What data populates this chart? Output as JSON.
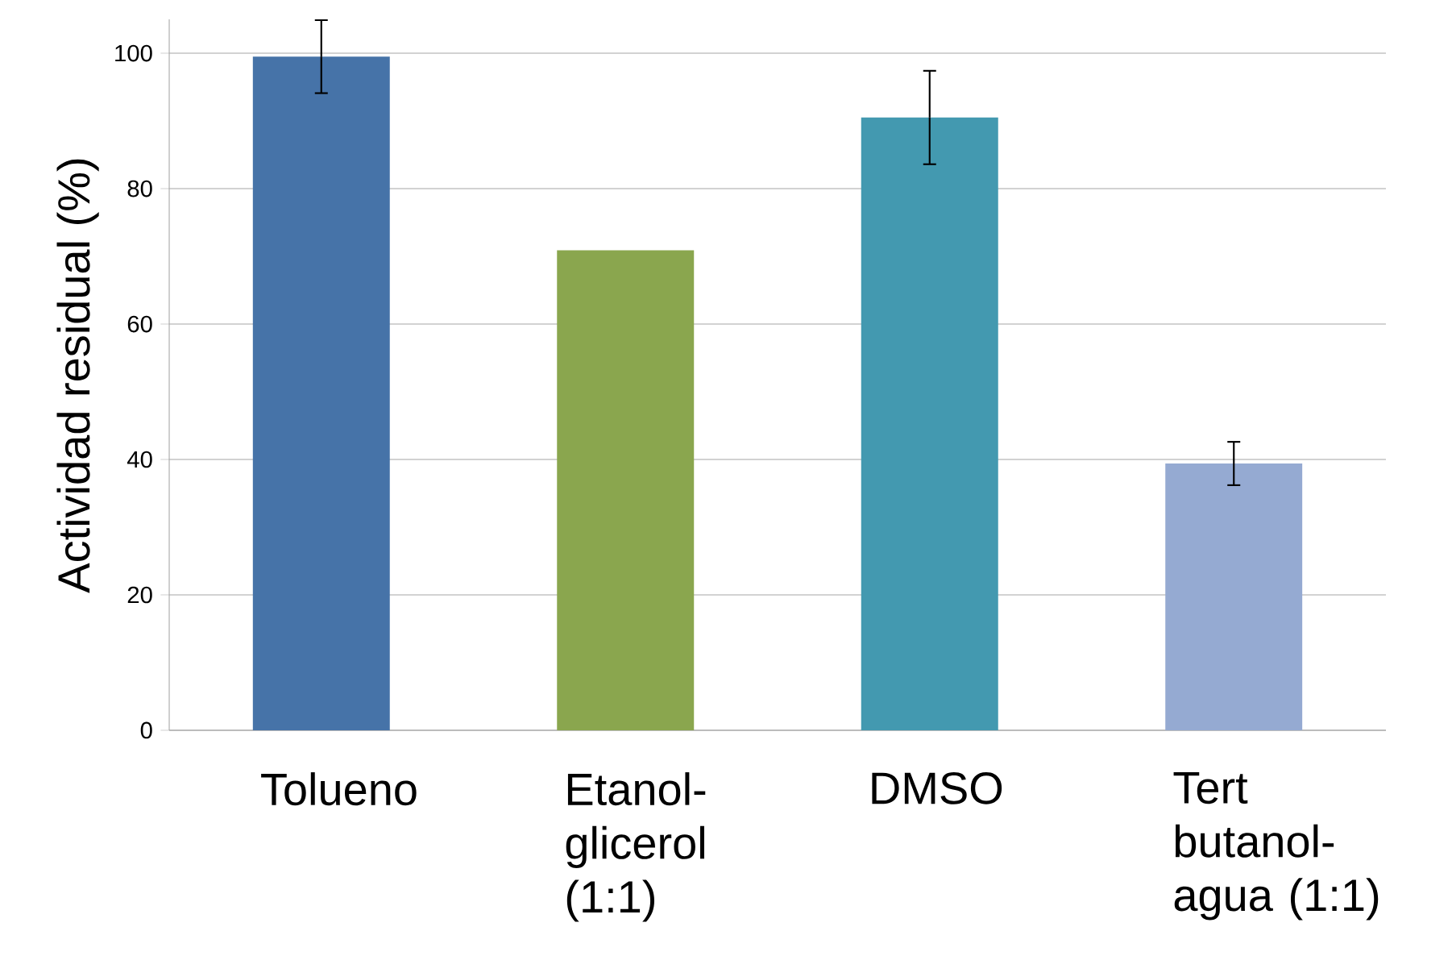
{
  "chart_data": {
    "type": "bar",
    "ylabel": "Actividad residual (%)",
    "categories": [
      "Tolueno",
      "Etanol-glicerol (1:1)",
      "DMSO",
      "Tert butanol-agua (1:1)"
    ],
    "values": [
      99.5,
      70.9,
      90.5,
      39.4
    ],
    "errors": [
      5.4,
      null,
      6.9,
      3.2
    ],
    "colors": [
      "#4673a8",
      "#8aa64e",
      "#4399b0",
      "#95aad2"
    ],
    "ylim": [
      0,
      105
    ],
    "yticks": [
      0,
      20,
      40,
      60,
      80,
      100
    ],
    "grid": "y"
  }
}
